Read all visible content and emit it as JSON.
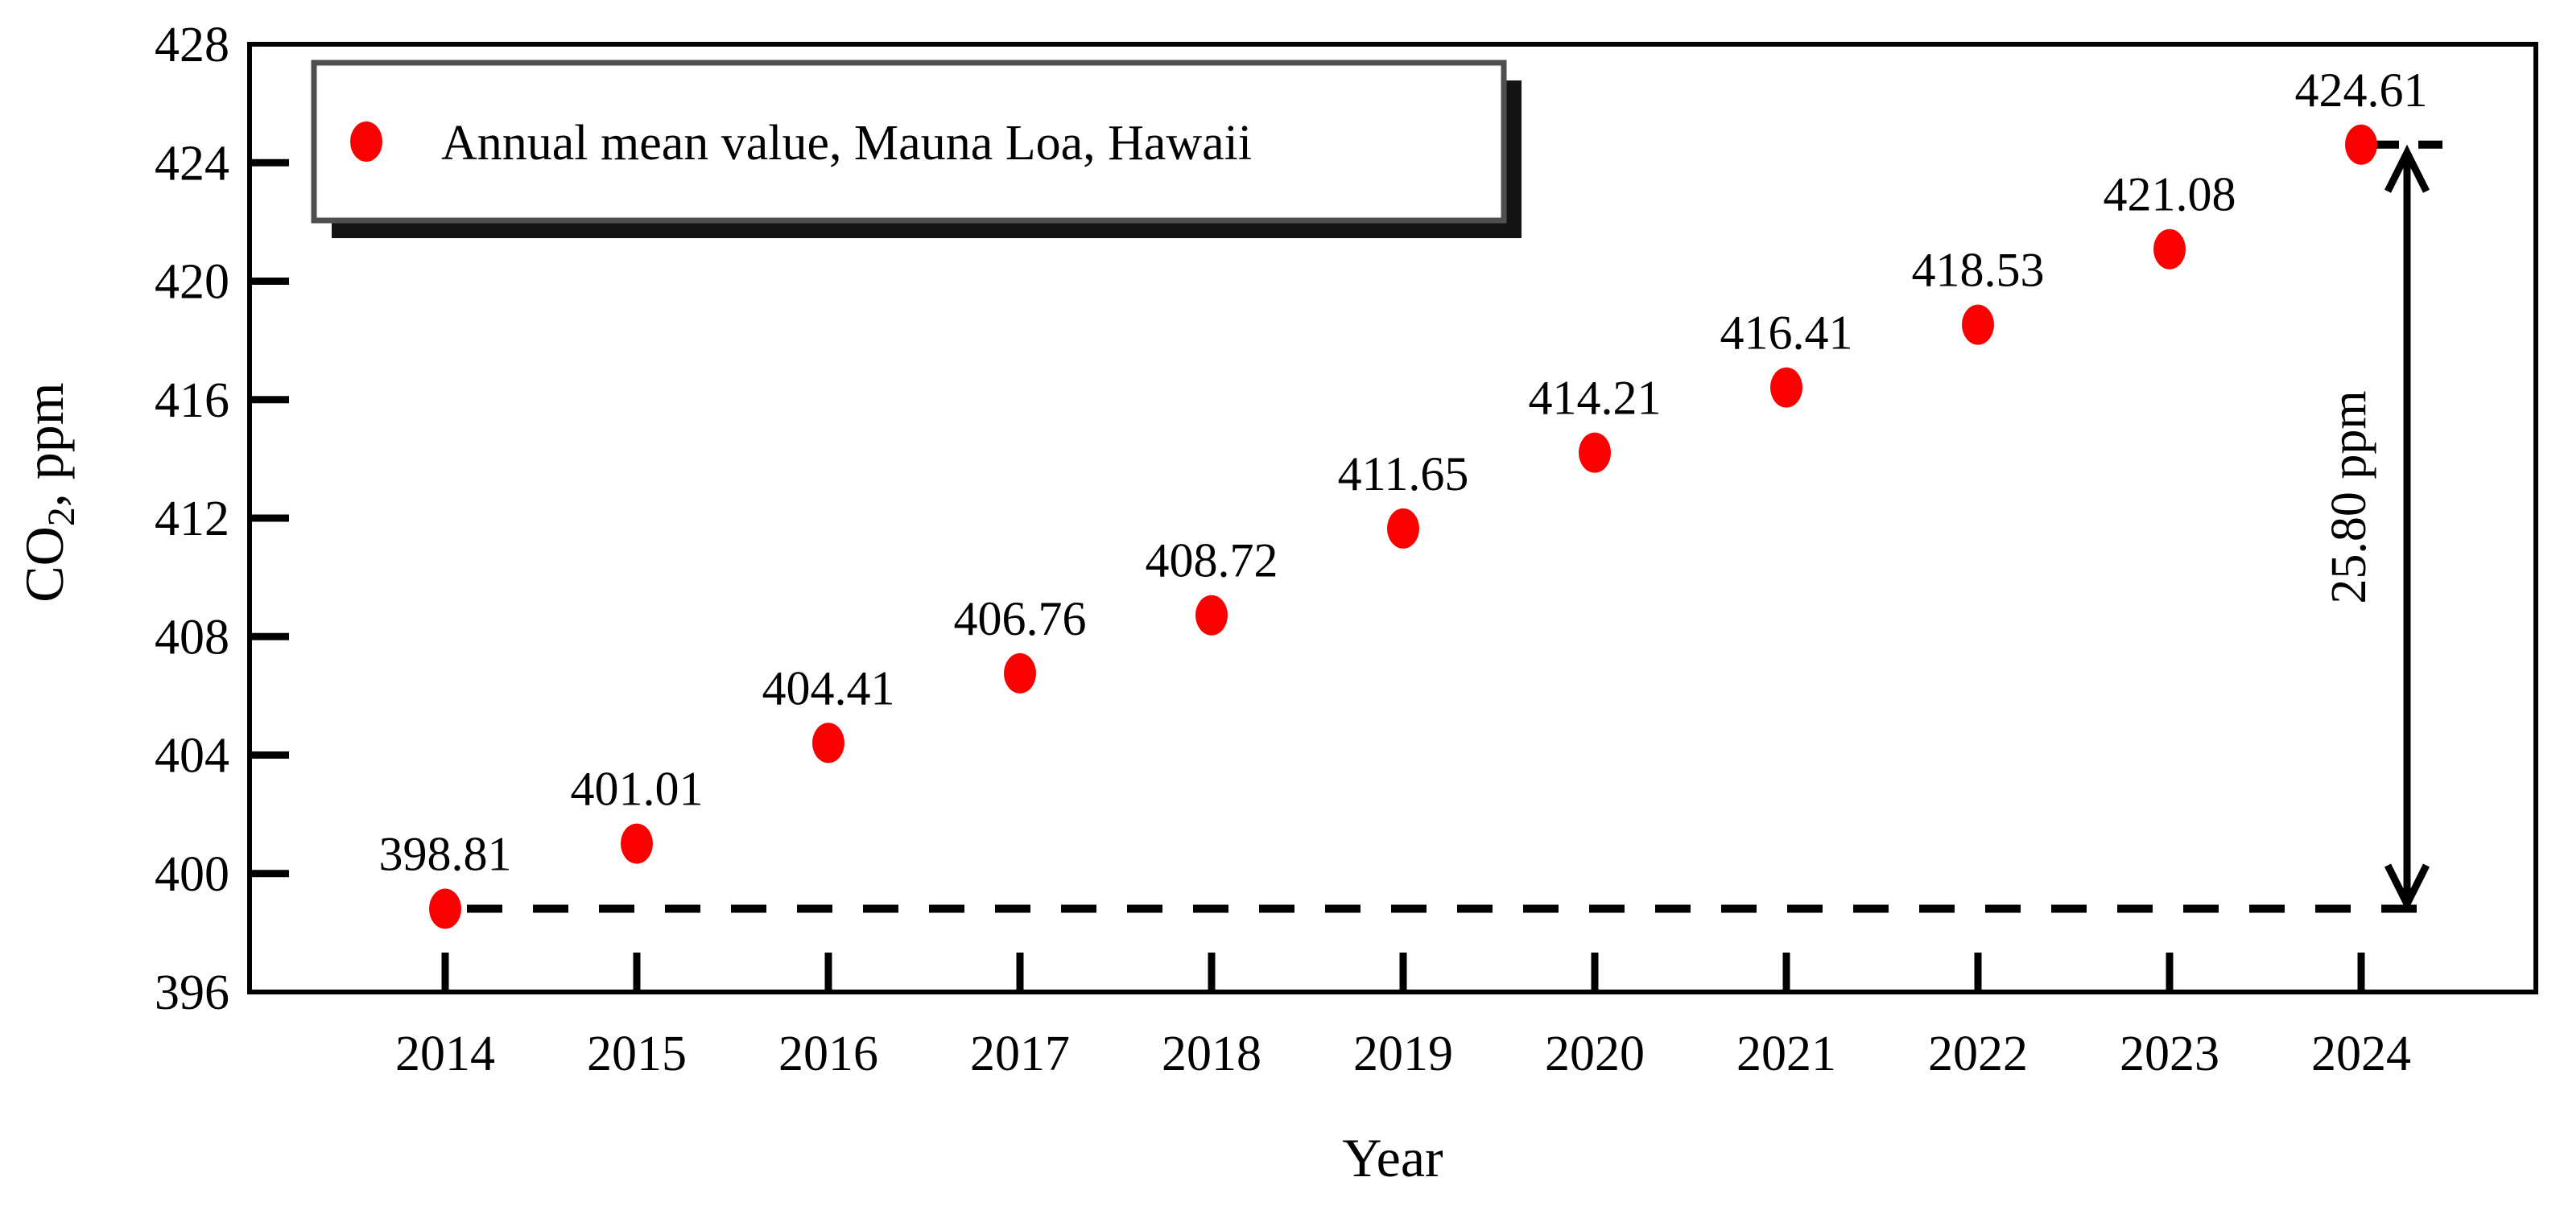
{
  "figure": {
    "background": "#ffffff",
    "frame_color": "#000000",
    "marker_color": "#fb0000",
    "legend_border_color": "#4f4f4f",
    "legend_shadow_color": "#141414"
  },
  "chart_data": {
    "type": "scatter",
    "title": "",
    "xlabel": "Year",
    "ylabel": "CO2, ppm",
    "ylabel_prefix": "CO",
    "ylabel_subscript": "2",
    "ylabel_suffix": ", ppm",
    "x": [
      2014,
      2015,
      2016,
      2017,
      2018,
      2019,
      2020,
      2021,
      2022,
      2023,
      2024
    ],
    "values": [
      398.81,
      401.01,
      404.41,
      406.76,
      408.72,
      411.65,
      414.21,
      416.41,
      418.53,
      421.08,
      424.61
    ],
    "point_labels": [
      "398.81",
      "401.01",
      "404.41",
      "406.76",
      "408.72",
      "411.65",
      "414.21",
      "416.41",
      "418.53",
      "421.08",
      "424.61"
    ],
    "xticks": [
      2014,
      2015,
      2016,
      2017,
      2018,
      2019,
      2020,
      2021,
      2022,
      2023,
      2024
    ],
    "yticks": [
      396,
      400,
      404,
      408,
      412,
      416,
      420,
      424,
      428
    ],
    "ylim": [
      396,
      428
    ],
    "grid": false,
    "legend": {
      "position": "top-left",
      "entries": [
        {
          "label": "Annual mean value, Mauna Loa, Hawaii",
          "marker": "circle",
          "color": "#fb0000"
        }
      ]
    },
    "annotations": {
      "baseline_dashed_at_value": 398.81,
      "arrow_top_value": 424.61,
      "arrow_bottom_value": 398.81,
      "delta_label": "25.80 ppm"
    }
  }
}
